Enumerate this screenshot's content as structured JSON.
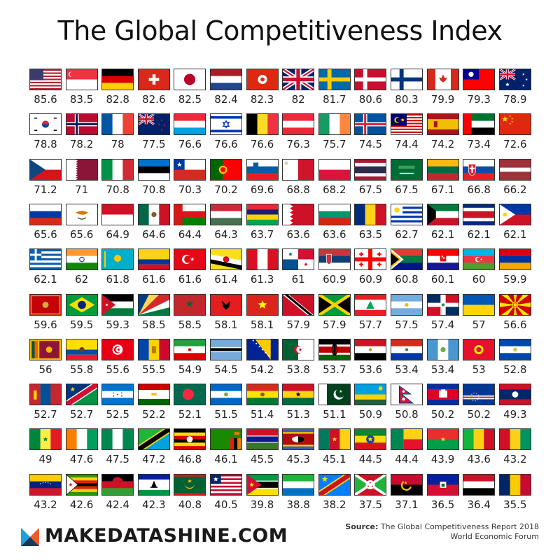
{
  "title": "The Global Competitiveness Index",
  "brand": "MAKEDATASHINE.COM",
  "source": {
    "label": "Source:",
    "line1": "The Global Competitiveness Report 2018",
    "line2": "World Economic Forum"
  },
  "chart_data": {
    "type": "table",
    "title": "The Global Competitiveness Index",
    "entries": [
      {
        "flag": "us",
        "value": "85.6"
      },
      {
        "flag": "sg",
        "value": "83.5"
      },
      {
        "flag": "de",
        "value": "82.8"
      },
      {
        "flag": "ch",
        "value": "82.6"
      },
      {
        "flag": "jp",
        "value": "82.5"
      },
      {
        "flag": "nl",
        "value": "82.4"
      },
      {
        "flag": "hk",
        "value": "82.3"
      },
      {
        "flag": "gb",
        "value": "82"
      },
      {
        "flag": "se",
        "value": "81.7"
      },
      {
        "flag": "dk",
        "value": "80.6"
      },
      {
        "flag": "fi",
        "value": "80.3"
      },
      {
        "flag": "ca",
        "value": "79.9"
      },
      {
        "flag": "tw",
        "value": "79.3"
      },
      {
        "flag": "au",
        "value": "78.9"
      },
      {
        "flag": "kr",
        "value": "78.8"
      },
      {
        "flag": "no",
        "value": "78.2"
      },
      {
        "flag": "fr",
        "value": "78"
      },
      {
        "flag": "nz",
        "value": "77.5"
      },
      {
        "flag": "lu",
        "value": "76.6"
      },
      {
        "flag": "il",
        "value": "76.6"
      },
      {
        "flag": "be",
        "value": "76.6"
      },
      {
        "flag": "at",
        "value": "76.3"
      },
      {
        "flag": "ie",
        "value": "75.7"
      },
      {
        "flag": "is",
        "value": "74.5"
      },
      {
        "flag": "my",
        "value": "74.4"
      },
      {
        "flag": "es",
        "value": "74.2"
      },
      {
        "flag": "ae",
        "value": "73.4"
      },
      {
        "flag": "cn",
        "value": "72.6"
      },
      {
        "flag": "cz",
        "value": "71.2"
      },
      {
        "flag": "qa",
        "value": "71"
      },
      {
        "flag": "it",
        "value": "70.8"
      },
      {
        "flag": "ee",
        "value": "70.8"
      },
      {
        "flag": "cl",
        "value": "70.3"
      },
      {
        "flag": "pt",
        "value": "70.2"
      },
      {
        "flag": "si",
        "value": "69.6"
      },
      {
        "flag": "mt",
        "value": "68.8"
      },
      {
        "flag": "pl",
        "value": "68.2"
      },
      {
        "flag": "th",
        "value": "67.5"
      },
      {
        "flag": "sa",
        "value": "67.5"
      },
      {
        "flag": "lt",
        "value": "67.1"
      },
      {
        "flag": "sk",
        "value": "66.8"
      },
      {
        "flag": "lv",
        "value": "66.2"
      },
      {
        "flag": "ru",
        "value": "65.6"
      },
      {
        "flag": "cy",
        "value": "65.6"
      },
      {
        "flag": "id",
        "value": "64.9"
      },
      {
        "flag": "mx",
        "value": "64.6"
      },
      {
        "flag": "om",
        "value": "64.4"
      },
      {
        "flag": "hu",
        "value": "64.3"
      },
      {
        "flag": "mu",
        "value": "63.7"
      },
      {
        "flag": "bh",
        "value": "63.6"
      },
      {
        "flag": "bg",
        "value": "63.6"
      },
      {
        "flag": "ro",
        "value": "63.5"
      },
      {
        "flag": "uy",
        "value": "62.7"
      },
      {
        "flag": "kw",
        "value": "62.1"
      },
      {
        "flag": "cr",
        "value": "62.1"
      },
      {
        "flag": "ph",
        "value": "62.1"
      },
      {
        "flag": "gr",
        "value": "62.1"
      },
      {
        "flag": "in",
        "value": "62"
      },
      {
        "flag": "kz",
        "value": "61.8"
      },
      {
        "flag": "co",
        "value": "61.6"
      },
      {
        "flag": "tr",
        "value": "61.6"
      },
      {
        "flag": "bn",
        "value": "61.4"
      },
      {
        "flag": "pe",
        "value": "61.3"
      },
      {
        "flag": "pa",
        "value": "61"
      },
      {
        "flag": "rs",
        "value": "60.9"
      },
      {
        "flag": "ge",
        "value": "60.9"
      },
      {
        "flag": "za",
        "value": "60.8"
      },
      {
        "flag": "hr",
        "value": "60.1"
      },
      {
        "flag": "az",
        "value": "60"
      },
      {
        "flag": "am",
        "value": "59.9"
      },
      {
        "flag": "me",
        "value": "59.6"
      },
      {
        "flag": "br",
        "value": "59.5"
      },
      {
        "flag": "jo",
        "value": "59.3"
      },
      {
        "flag": "sc",
        "value": "58.5"
      },
      {
        "flag": "ma",
        "value": "58.5"
      },
      {
        "flag": "al",
        "value": "58.1"
      },
      {
        "flag": "vn",
        "value": "58.1"
      },
      {
        "flag": "tt",
        "value": "57.9"
      },
      {
        "flag": "jm",
        "value": "57.9"
      },
      {
        "flag": "lb",
        "value": "57.7"
      },
      {
        "flag": "ar",
        "value": "57.5"
      },
      {
        "flag": "do",
        "value": "57.4"
      },
      {
        "flag": "ua",
        "value": "57"
      },
      {
        "flag": "mk",
        "value": "56.6"
      },
      {
        "flag": "lk",
        "value": "56"
      },
      {
        "flag": "ec",
        "value": "55.8"
      },
      {
        "flag": "tn",
        "value": "55.6"
      },
      {
        "flag": "md",
        "value": "55.5"
      },
      {
        "flag": "ir",
        "value": "54.9"
      },
      {
        "flag": "bw",
        "value": "54.5"
      },
      {
        "flag": "ba",
        "value": "54.2"
      },
      {
        "flag": "dz",
        "value": "53.8"
      },
      {
        "flag": "ke",
        "value": "53.7"
      },
      {
        "flag": "eg",
        "value": "53.6"
      },
      {
        "flag": "py",
        "value": "53.4"
      },
      {
        "flag": "gt",
        "value": "53.4"
      },
      {
        "flag": "kg",
        "value": "53"
      },
      {
        "flag": "sv",
        "value": "52.8"
      },
      {
        "flag": "mn",
        "value": "52.7"
      },
      {
        "flag": "na",
        "value": "52.7"
      },
      {
        "flag": "hn",
        "value": "52.5"
      },
      {
        "flag": "tj",
        "value": "52.2"
      },
      {
        "flag": "bd",
        "value": "52.1"
      },
      {
        "flag": "ni",
        "value": "51.5"
      },
      {
        "flag": "bo",
        "value": "51.4"
      },
      {
        "flag": "gh",
        "value": "51.3"
      },
      {
        "flag": "pk",
        "value": "51.1"
      },
      {
        "flag": "rw",
        "value": "50.9"
      },
      {
        "flag": "np",
        "value": "50.8"
      },
      {
        "flag": "kh",
        "value": "50.2"
      },
      {
        "flag": "cv",
        "value": "50.2"
      },
      {
        "flag": "la",
        "value": "49.3"
      },
      {
        "flag": "sn",
        "value": "49"
      },
      {
        "flag": "ci",
        "value": "47.6"
      },
      {
        "flag": "ng",
        "value": "47.5"
      },
      {
        "flag": "tz",
        "value": "47.2"
      },
      {
        "flag": "ug",
        "value": "46.8"
      },
      {
        "flag": "zm",
        "value": "46.1"
      },
      {
        "flag": "gm",
        "value": "45.5"
      },
      {
        "flag": "sz",
        "value": "45.3"
      },
      {
        "flag": "cm",
        "value": "45.1"
      },
      {
        "flag": "et",
        "value": "44.5"
      },
      {
        "flag": "bj",
        "value": "44.4"
      },
      {
        "flag": "bf",
        "value": "43.9"
      },
      {
        "flag": "ml",
        "value": "43.6"
      },
      {
        "flag": "gn",
        "value": "43.2"
      },
      {
        "flag": "ve",
        "value": "43.2"
      },
      {
        "flag": "zw",
        "value": "42.6"
      },
      {
        "flag": "mw",
        "value": "42.4"
      },
      {
        "flag": "ls",
        "value": "42.3"
      },
      {
        "flag": "mr",
        "value": "40.8"
      },
      {
        "flag": "lr",
        "value": "40.5"
      },
      {
        "flag": "mz",
        "value": "39.8"
      },
      {
        "flag": "sl",
        "value": "38.8"
      },
      {
        "flag": "cd",
        "value": "38.2"
      },
      {
        "flag": "bi",
        "value": "37.5"
      },
      {
        "flag": "ao",
        "value": "37.1"
      },
      {
        "flag": "ht",
        "value": "36.5"
      },
      {
        "flag": "ye",
        "value": "36.4"
      },
      {
        "flag": "td",
        "value": "35.5"
      }
    ]
  }
}
